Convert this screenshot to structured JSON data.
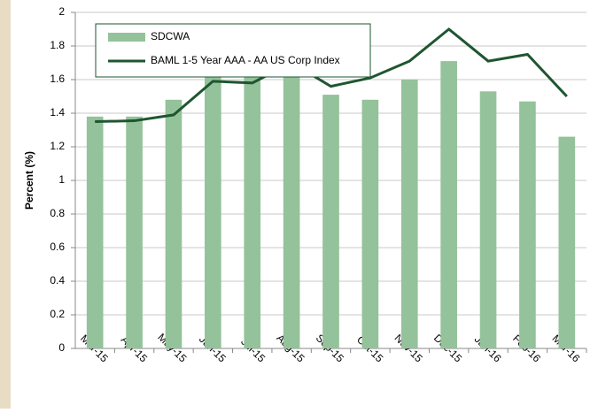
{
  "chart_data": {
    "type": "bar-line",
    "y_label": "Percent (%)",
    "categories": [
      "Mar-15",
      "Apr-15",
      "May-15",
      "Jun-15",
      "Jul-15",
      "Aug-15",
      "Sep-15",
      "Oct-15",
      "Nov-15",
      "Dec-15",
      "Jan-16",
      "Feb-16",
      "Mar-16"
    ],
    "series": [
      {
        "name": "SDCWA",
        "type": "bar",
        "color": "#94c29a",
        "values": [
          1.38,
          1.38,
          1.48,
          1.64,
          1.62,
          1.66,
          1.51,
          1.48,
          1.6,
          1.71,
          1.53,
          1.47,
          1.26
        ]
      },
      {
        "name": "BAML 1-5 Year AAA - AA US Corp Index",
        "type": "line",
        "color": "#1e5630",
        "values": [
          1.35,
          1.355,
          1.39,
          1.59,
          1.58,
          1.7,
          1.56,
          1.61,
          1.71,
          1.9,
          1.71,
          1.75,
          1.5
        ]
      }
    ],
    "ylim": [
      0,
      2
    ],
    "yticks": [
      0,
      0.2,
      0.4,
      0.6,
      0.8,
      1,
      1.2,
      1.4,
      1.6,
      1.8,
      2
    ],
    "grid": true
  }
}
